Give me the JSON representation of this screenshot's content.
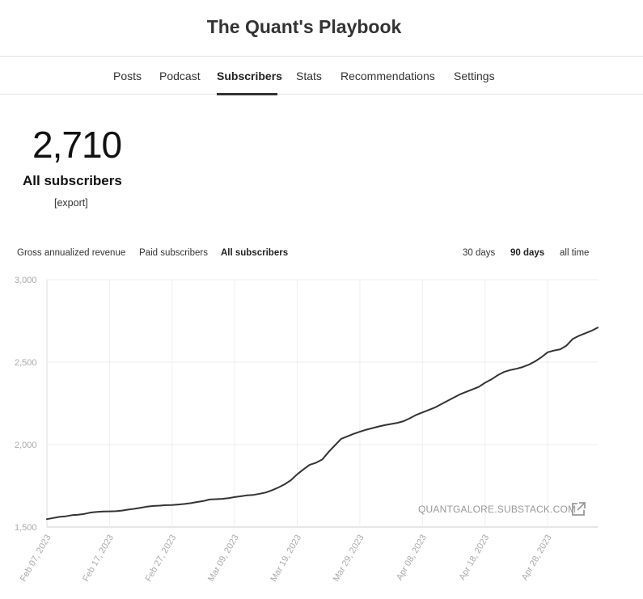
{
  "header": {
    "title": "The Quant's Playbook"
  },
  "nav": {
    "tabs": [
      {
        "label": "Posts",
        "active": false
      },
      {
        "label": "Podcast",
        "active": false
      },
      {
        "label": "Subscribers",
        "active": true
      },
      {
        "label": "Stats",
        "active": false
      },
      {
        "label": "Recommendations",
        "active": false
      },
      {
        "label": "Settings",
        "active": false
      }
    ]
  },
  "summary": {
    "count": "2,710",
    "label": "All subscribers",
    "export_label": "[export]"
  },
  "metric_tabs": [
    {
      "label": "Gross annualized revenue",
      "active": false
    },
    {
      "label": "Paid subscribers",
      "active": false
    },
    {
      "label": "All subscribers",
      "active": true
    }
  ],
  "range_tabs": [
    {
      "label": "30 days",
      "active": false
    },
    {
      "label": "90 days",
      "active": true
    },
    {
      "label": "all time",
      "active": false
    }
  ],
  "watermark": {
    "label": "QUANTGALORE.SUBSTACK.COM",
    "icon": "external-link-icon"
  },
  "colors": {
    "line": "#333333",
    "grid": "#eeeeee",
    "axis_text": "#aaaaaa"
  },
  "chart_data": {
    "type": "line",
    "xlabel": "",
    "ylabel": "",
    "ylim": [
      1500,
      3000
    ],
    "y_ticks": [
      {
        "value": 1500,
        "label": "1,500"
      },
      {
        "value": 2000,
        "label": "2,000"
      },
      {
        "value": 2500,
        "label": "2,500"
      },
      {
        "value": 3000,
        "label": "3,000"
      }
    ],
    "x_range": [
      "2023-02-07",
      "2023-05-06"
    ],
    "x_ticks": [
      {
        "date": "2023-02-07",
        "label": "Feb 07, 2023"
      },
      {
        "date": "2023-02-17",
        "label": "Feb 17, 2023"
      },
      {
        "date": "2023-02-27",
        "label": "Feb 27, 2023"
      },
      {
        "date": "2023-03-09",
        "label": "Mar 09, 2023"
      },
      {
        "date": "2023-03-19",
        "label": "Mar 19, 2023"
      },
      {
        "date": "2023-03-29",
        "label": "Mar 29, 2023"
      },
      {
        "date": "2023-04-08",
        "label": "Apr 08, 2023"
      },
      {
        "date": "2023-04-18",
        "label": "Apr 18, 2023"
      },
      {
        "date": "2023-04-28",
        "label": "Apr 28, 2023"
      }
    ],
    "grid": true,
    "series": [
      {
        "points": [
          [
            "2023-02-07",
            1548
          ],
          [
            "2023-02-08",
            1555
          ],
          [
            "2023-02-09",
            1562
          ],
          [
            "2023-02-10",
            1565
          ],
          [
            "2023-02-11",
            1572
          ],
          [
            "2023-02-12",
            1575
          ],
          [
            "2023-02-13",
            1580
          ],
          [
            "2023-02-14",
            1588
          ],
          [
            "2023-02-15",
            1592
          ],
          [
            "2023-02-16",
            1594
          ],
          [
            "2023-02-17",
            1595
          ],
          [
            "2023-02-18",
            1596
          ],
          [
            "2023-02-19",
            1600
          ],
          [
            "2023-02-20",
            1606
          ],
          [
            "2023-02-21",
            1611
          ],
          [
            "2023-02-22",
            1617
          ],
          [
            "2023-02-23",
            1624
          ],
          [
            "2023-02-24",
            1628
          ],
          [
            "2023-02-25",
            1630
          ],
          [
            "2023-02-26",
            1633
          ],
          [
            "2023-02-27",
            1634
          ],
          [
            "2023-02-28",
            1637
          ],
          [
            "2023-03-01",
            1640
          ],
          [
            "2023-03-02",
            1645
          ],
          [
            "2023-03-03",
            1652
          ],
          [
            "2023-03-04",
            1658
          ],
          [
            "2023-03-05",
            1667
          ],
          [
            "2023-03-06",
            1669
          ],
          [
            "2023-03-07",
            1671
          ],
          [
            "2023-03-08",
            1675
          ],
          [
            "2023-03-09",
            1682
          ],
          [
            "2023-03-10",
            1687
          ],
          [
            "2023-03-11",
            1692
          ],
          [
            "2023-03-12",
            1695
          ],
          [
            "2023-03-13",
            1702
          ],
          [
            "2023-03-14",
            1710
          ],
          [
            "2023-03-15",
            1724
          ],
          [
            "2023-03-16",
            1740
          ],
          [
            "2023-03-17",
            1760
          ],
          [
            "2023-03-18",
            1785
          ],
          [
            "2023-03-19",
            1820
          ],
          [
            "2023-03-20",
            1850
          ],
          [
            "2023-03-21",
            1878
          ],
          [
            "2023-03-22",
            1890
          ],
          [
            "2023-03-23",
            1910
          ],
          [
            "2023-03-24",
            1955
          ],
          [
            "2023-03-25",
            1995
          ],
          [
            "2023-03-26",
            2035
          ],
          [
            "2023-03-27",
            2050
          ],
          [
            "2023-03-28",
            2065
          ],
          [
            "2023-03-29",
            2078
          ],
          [
            "2023-03-30",
            2090
          ],
          [
            "2023-03-31",
            2100
          ],
          [
            "2023-04-01",
            2110
          ],
          [
            "2023-04-02",
            2118
          ],
          [
            "2023-04-03",
            2125
          ],
          [
            "2023-04-04",
            2132
          ],
          [
            "2023-04-05",
            2142
          ],
          [
            "2023-04-06",
            2160
          ],
          [
            "2023-04-07",
            2180
          ],
          [
            "2023-04-08",
            2195
          ],
          [
            "2023-04-09",
            2210
          ],
          [
            "2023-04-10",
            2225
          ],
          [
            "2023-04-11",
            2245
          ],
          [
            "2023-04-12",
            2265
          ],
          [
            "2023-04-13",
            2285
          ],
          [
            "2023-04-14",
            2305
          ],
          [
            "2023-04-15",
            2320
          ],
          [
            "2023-04-16",
            2335
          ],
          [
            "2023-04-17",
            2350
          ],
          [
            "2023-04-18",
            2375
          ],
          [
            "2023-04-19",
            2395
          ],
          [
            "2023-04-20",
            2420
          ],
          [
            "2023-04-21",
            2440
          ],
          [
            "2023-04-22",
            2452
          ],
          [
            "2023-04-23",
            2460
          ],
          [
            "2023-04-24",
            2470
          ],
          [
            "2023-04-25",
            2485
          ],
          [
            "2023-04-26",
            2505
          ],
          [
            "2023-04-27",
            2530
          ],
          [
            "2023-04-28",
            2560
          ],
          [
            "2023-04-29",
            2570
          ],
          [
            "2023-04-30",
            2578
          ],
          [
            "2023-05-01",
            2600
          ],
          [
            "2023-05-02",
            2640
          ],
          [
            "2023-05-03",
            2660
          ],
          [
            "2023-05-04",
            2675
          ],
          [
            "2023-05-05",
            2690
          ],
          [
            "2023-05-06",
            2710
          ]
        ]
      }
    ]
  }
}
